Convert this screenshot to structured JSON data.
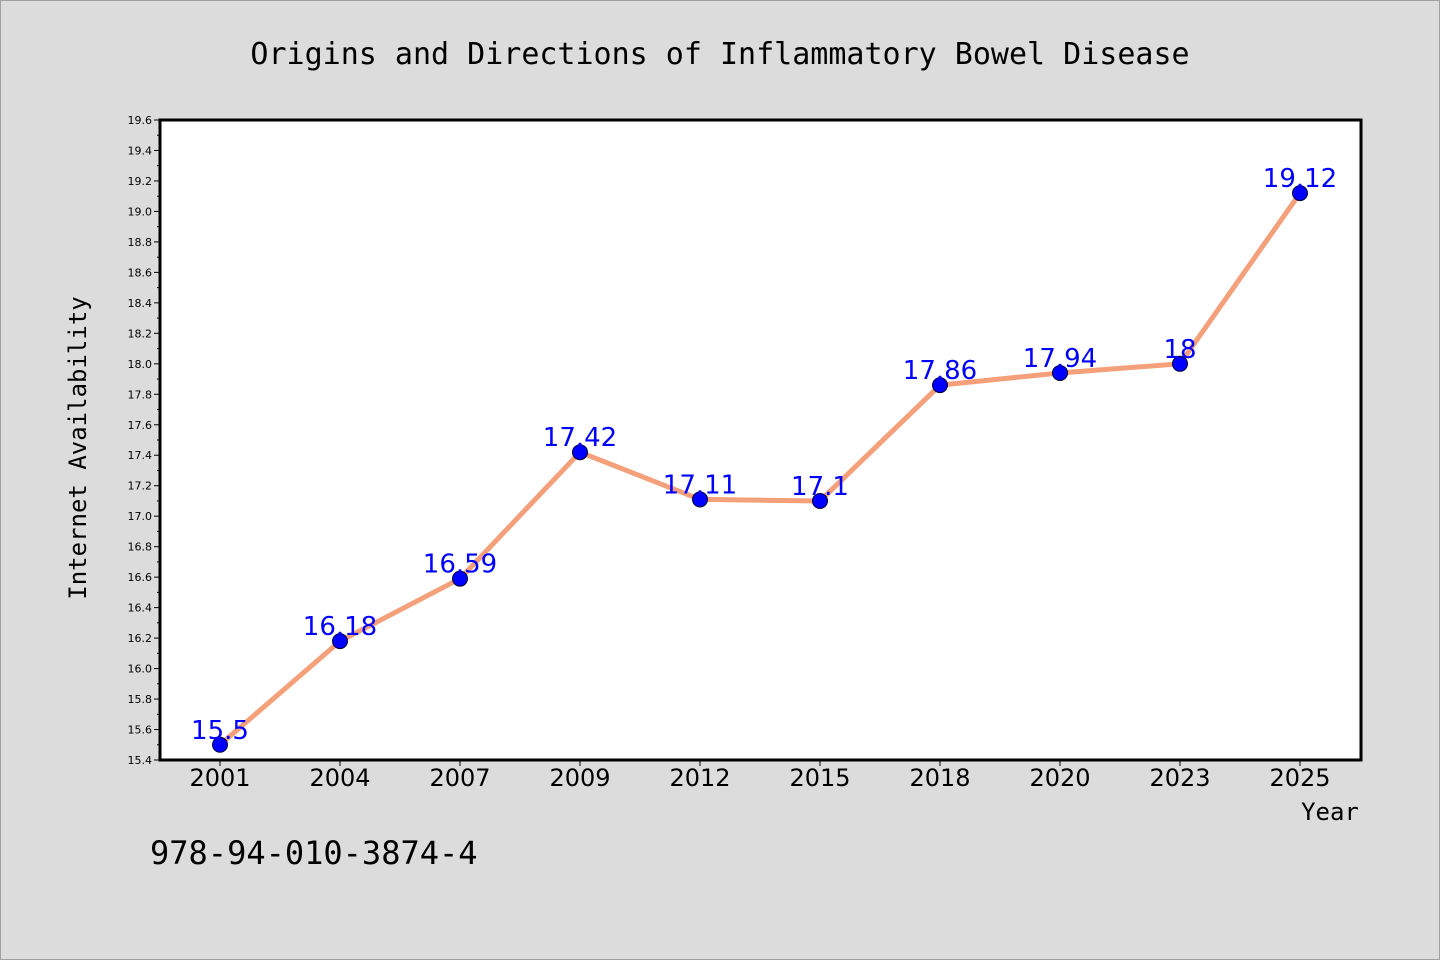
{
  "chart_data": {
    "type": "line",
    "title": "Origins and Directions of Inflammatory Bowel Disease",
    "xlabel": "Year",
    "ylabel": "Internet Availability",
    "categories": [
      "2001",
      "2004",
      "2007",
      "2009",
      "2012",
      "2015",
      "2018",
      "2020",
      "2023",
      "2025"
    ],
    "series": [
      {
        "values": [
          15.5,
          16.18,
          16.59,
          17.42,
          17.11,
          17.1,
          17.86,
          17.94,
          18,
          19.12
        ],
        "data_labels": [
          "15.5",
          "16.18",
          "16.59",
          "17.42",
          "17.11",
          "17.1",
          "17.86",
          "17.94",
          "18",
          "19.12"
        ],
        "line_color": "#f4a07a",
        "marker_color": "#0000ff"
      }
    ],
    "ylim": [
      15.4,
      19.6
    ],
    "yticks": [
      "15.4",
      "15.6",
      "15.8",
      "16.0",
      "16.2",
      "16.4",
      "16.6",
      "16.8",
      "17.0",
      "17.2",
      "17.4",
      "17.6",
      "17.8",
      "18.0",
      "18.2",
      "18.4",
      "18.6",
      "18.8",
      "19.0",
      "19.2",
      "19.4",
      "19.6"
    ],
    "grid": false,
    "legend": "none"
  },
  "annotation": {
    "isbn": "978-94-010-3874-4"
  },
  "colors": {
    "background": "#dcdcdc",
    "plot_background": "#ffffff",
    "line": "#f4a07a",
    "marker": "#0000ff",
    "data_label": "#0000ff"
  }
}
